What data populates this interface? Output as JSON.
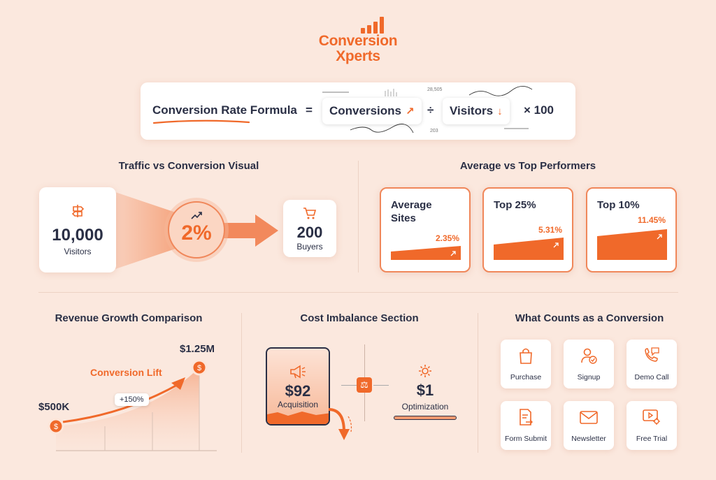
{
  "brand": {
    "line1": "Conversion",
    "line2": "Xperts"
  },
  "formula": {
    "title": "Conversion Rate Formula",
    "equals": "=",
    "conversions": "Conversions",
    "divide": "÷",
    "visitors": "Visitors",
    "times": "× 100",
    "annot1": "28,505",
    "annot2": "203"
  },
  "traffic": {
    "title": "Traffic vs Conversion Visual",
    "visitors_num": "10,000",
    "visitors_lbl": "Visitors",
    "rate": "2%",
    "buyers_num": "200",
    "buyers_lbl": "Buyers"
  },
  "performers": {
    "title": "Average vs Top Performers",
    "cards": [
      {
        "label_line1": "Average",
        "label_line2": "Sites",
        "value": "2.35%"
      },
      {
        "label_line1": "Top 25%",
        "label_line2": "",
        "value": "5.31%"
      },
      {
        "label_line1": "Top 10%",
        "label_line2": "",
        "value": "11.45%"
      }
    ]
  },
  "revenue": {
    "title": "Revenue Growth Comparison",
    "start": "$500K",
    "end": "$1.25M",
    "lift": "Conversion Lift",
    "pct": "+150%"
  },
  "cost": {
    "title": "Cost Imbalance Section",
    "acq_value": "$92",
    "acq_label": "Acquisition",
    "opt_value": "$1",
    "opt_label": "Optimization"
  },
  "conversions": {
    "title": "What Counts as a Conversion",
    "items": [
      {
        "label": "Purchase",
        "icon": "bag-icon"
      },
      {
        "label": "Signup",
        "icon": "user-check-icon"
      },
      {
        "label": "Demo Call",
        "icon": "phone-chat-icon"
      },
      {
        "label": "Form Submit",
        "icon": "form-icon"
      },
      {
        "label": "Newsletter",
        "icon": "envelope-icon"
      },
      {
        "label": "Free Trial",
        "icon": "play-gear-icon"
      }
    ]
  },
  "colors": {
    "accent": "#f0692a",
    "background": "#fbe8de",
    "text": "#2a2f45"
  }
}
